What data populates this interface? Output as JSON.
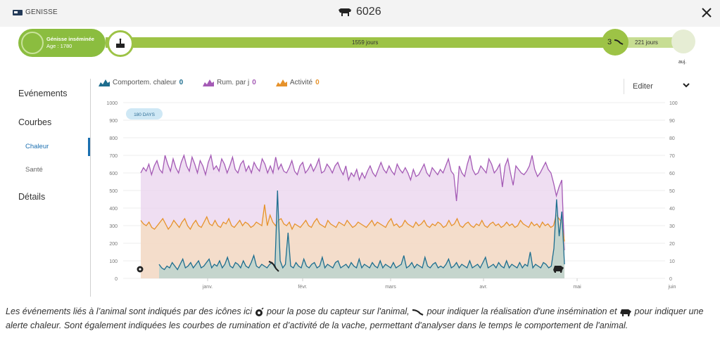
{
  "header": {
    "left_label": "GENISSE",
    "animal_id": "6026",
    "close_label": "✕"
  },
  "timeline": {
    "status_title": "Génisse inséminée",
    "status_age": "Age : 1780",
    "days_segment_1": "1559 jours",
    "insemination_count": "3",
    "days_segment_2": "221 jours",
    "end_label": "auj."
  },
  "sidebar": {
    "evenements": "Evénements",
    "courbes": "Courbes",
    "chaleur": "Chaleur",
    "sante": "Santé",
    "details": "Détails"
  },
  "legend": [
    {
      "label": "Comportem. chaleur",
      "count": "0",
      "color": "#1d6d8e"
    },
    {
      "label": "Rum. par j",
      "count": "0",
      "color": "#a45ab5"
    },
    {
      "label": "Activité",
      "count": "0",
      "color": "#e6922b"
    }
  ],
  "edit": {
    "label": "Editer"
  },
  "chart_data": {
    "type": "area",
    "badge": "180 DAYS",
    "x_ticks": [
      "janv.",
      "févr.",
      "mars",
      "avr.",
      "mai",
      "juin"
    ],
    "y_left": [
      0,
      100,
      200,
      300,
      400,
      500,
      600,
      700,
      800,
      900,
      1000
    ],
    "y_right": [
      0,
      10,
      20,
      30,
      40,
      50,
      60,
      70,
      80,
      90,
      100
    ],
    "ylim": [
      0,
      1000
    ],
    "series": [
      {
        "name": "Rum. par j",
        "color": "#a45ab5",
        "fill": "#ead3ee",
        "values": [
          600,
          630,
          610,
          650,
          590,
          640,
          670,
          620,
          600,
          700,
          650,
          610,
          680,
          630,
          600,
          660,
          700,
          640,
          610,
          690,
          650,
          600,
          670,
          640,
          590,
          660,
          700,
          620,
          640,
          610,
          680,
          650,
          600,
          640,
          690,
          620,
          600,
          650,
          670,
          610,
          640,
          600,
          660,
          630,
          610,
          680,
          650,
          600,
          640,
          600,
          690,
          620,
          650,
          610,
          600,
          630,
          670,
          610,
          590,
          640,
          660,
          600,
          620,
          650,
          610,
          640,
          680,
          600,
          610,
          650,
          630,
          600,
          640,
          660,
          620,
          590,
          640,
          560,
          600,
          580,
          620,
          560,
          600,
          570,
          610,
          640,
          600,
          580,
          620,
          660,
          620,
          600,
          640,
          610,
          590,
          650,
          620,
          600,
          630,
          600,
          560,
          620,
          580,
          590,
          620,
          650,
          600,
          580,
          630,
          610,
          590,
          620,
          600,
          640,
          680,
          610,
          590,
          440,
          640,
          600,
          580,
          650,
          700,
          620,
          590,
          600,
          640,
          620,
          600,
          680,
          650,
          600,
          620,
          650,
          520,
          640,
          680,
          600,
          530,
          640,
          620,
          600,
          590,
          610,
          640,
          700,
          620,
          580,
          600,
          630,
          660,
          620,
          600,
          540,
          470,
          520,
          560,
          160
        ]
      },
      {
        "name": "Activité",
        "color": "#e6922b",
        "fill": "#f6dcbd",
        "values": [
          330,
          310,
          300,
          320,
          290,
          280,
          300,
          320,
          340,
          310,
          280,
          300,
          330,
          310,
          290,
          320,
          340,
          300,
          280,
          310,
          330,
          300,
          290,
          320,
          350,
          310,
          300,
          330,
          300,
          290,
          320,
          310,
          340,
          300,
          290,
          310,
          330,
          300,
          320,
          310,
          290,
          300,
          320,
          310,
          300,
          420,
          300,
          360,
          320,
          300,
          330,
          340,
          310,
          300,
          320,
          280,
          310,
          300,
          290,
          310,
          330,
          300,
          290,
          320,
          340,
          310,
          300,
          290,
          330,
          310,
          300,
          290,
          320,
          310,
          300,
          330,
          310,
          290,
          300,
          320,
          310,
          300,
          290,
          310,
          330,
          300,
          320,
          310,
          300,
          290,
          320,
          340,
          300,
          310,
          290,
          300,
          330,
          310,
          300,
          290,
          320,
          300,
          310,
          330,
          300,
          290,
          310,
          300,
          320,
          310,
          290,
          300,
          330,
          300,
          310,
          340,
          300,
          290,
          310,
          320,
          300,
          290,
          310,
          300,
          330,
          300,
          290,
          310,
          320,
          300,
          310,
          290,
          300,
          320,
          300,
          310,
          290,
          300,
          330,
          310,
          300,
          290,
          320,
          300,
          310,
          290,
          320,
          300,
          310,
          290,
          300,
          360,
          340,
          320,
          210
        ]
      },
      {
        "name": "Comportem. chaleur",
        "color": "#1d6d8e",
        "fill": "#b6d2cd",
        "values": [
          80,
          60,
          50,
          70,
          60,
          90,
          70,
          50,
          80,
          110,
          60,
          70,
          90,
          60,
          80,
          100,
          60,
          70,
          90,
          110,
          60,
          80,
          70,
          100,
          60,
          80,
          120,
          70,
          60,
          90,
          80,
          60,
          100,
          70,
          60,
          90,
          130,
          70,
          60,
          80,
          70,
          60,
          80,
          90,
          60,
          500,
          100,
          60,
          80,
          260,
          70,
          60,
          90,
          70,
          60,
          110,
          70,
          60,
          80,
          90,
          60,
          70,
          120,
          60,
          80,
          70,
          60,
          90,
          100,
          60,
          70,
          80,
          60,
          90,
          70,
          60,
          110,
          60,
          80,
          70,
          60,
          90,
          70,
          60,
          100,
          60,
          80,
          70,
          60,
          90,
          60,
          70,
          80,
          130,
          60,
          70,
          90,
          60,
          80,
          70,
          60,
          120,
          70,
          60,
          80,
          90,
          60,
          70,
          60,
          80,
          110,
          60,
          70,
          90,
          60,
          80,
          70,
          60,
          100,
          60,
          70,
          80,
          60,
          90,
          120,
          60,
          70,
          80,
          60,
          90,
          70,
          60,
          100,
          60,
          80,
          70,
          60,
          90,
          60,
          80,
          70,
          150,
          60,
          80,
          70,
          60,
          90,
          80,
          60,
          70,
          170,
          450,
          240,
          380,
          80
        ]
      }
    ]
  },
  "caption": {
    "part1": "Les événements liés à l’animal sont indiqués par des icônes ici ",
    "part2": " pour la pose du capteur sur l'animal, ",
    "part3": " pour indiquer  la réalisation d'une insémination et ",
    "part4": " pour indiquer une alerte chaleur. Sont également indiquées les courbes de rumination et d’activité de la vache, permettant d'analyser dans le temps le comportement de l'animal."
  }
}
